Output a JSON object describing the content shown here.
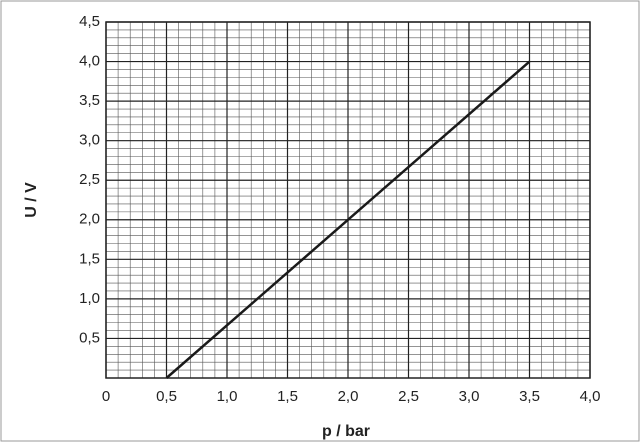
{
  "chart_data": {
    "type": "line",
    "x_label": "p / bar",
    "y_label": "U / V",
    "x": [
      0.5,
      3.5
    ],
    "series": [
      {
        "name": "U",
        "color": "#1a1a1a",
        "values": [
          0,
          4.0
        ]
      }
    ],
    "xlim": [
      0,
      4.0
    ],
    "ylim": [
      0,
      4.5
    ],
    "xticks": [
      0,
      {
        "value": 0.5,
        "label": "0,5"
      },
      {
        "value": 1.0,
        "label": "1,0"
      },
      {
        "value": 1.5,
        "label": "1,5"
      },
      {
        "value": 2.0,
        "label": "2,0"
      },
      {
        "value": 2.5,
        "label": "2,5"
      },
      {
        "value": 3.0,
        "label": "3,0"
      },
      {
        "value": 3.5,
        "label": "3,5"
      },
      {
        "value": 4.0,
        "label": "4,0"
      }
    ],
    "yticks": [
      {
        "value": 0.5,
        "label": "0,5"
      },
      {
        "value": 1.0,
        "label": "1,0"
      },
      {
        "value": 1.5,
        "label": "1,5"
      },
      {
        "value": 2.0,
        "label": "2,0"
      },
      {
        "value": 2.5,
        "label": "2,5"
      },
      {
        "value": 3.0,
        "label": "3,0"
      },
      {
        "value": 3.5,
        "label": "3,5"
      },
      {
        "value": 4.0,
        "label": "4,0"
      },
      {
        "value": 4.5,
        "label": "4,5"
      }
    ],
    "grid": true
  }
}
